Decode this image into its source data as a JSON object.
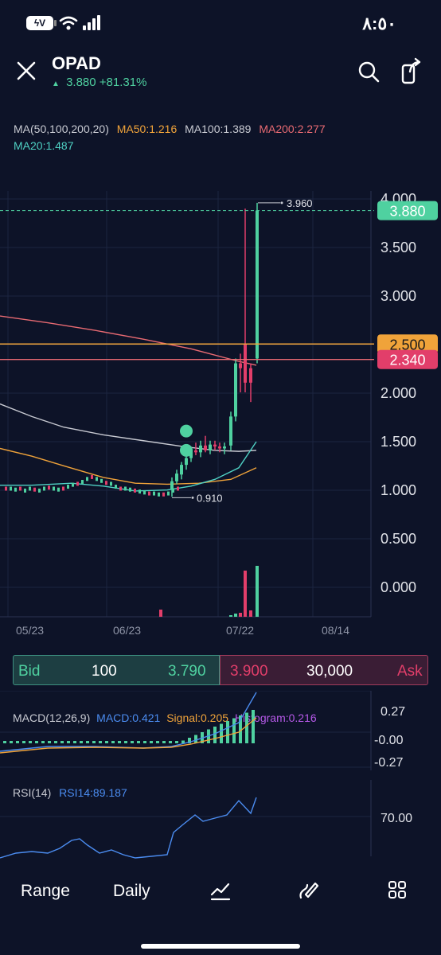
{
  "status": {
    "battery": "ϟV",
    "time": "٨:٥٠"
  },
  "header": {
    "symbol": "OPAD",
    "last": "3.880",
    "change": "+81.31%"
  },
  "ma": {
    "label": "MA(50,100,200,20)",
    "ma50": "MA50:1.216",
    "ma100": "MA100:1.389",
    "ma200": "MA200:2.277",
    "ma20": "MA20:1.487"
  },
  "colors": {
    "up": "#4fd1a0",
    "down": "#e23e6a",
    "ma50": "#f0a33a",
    "ma100": "#c8cad2",
    "ma200": "#e86a72",
    "ma20": "#4fd1c4",
    "bg": "#0d1328"
  },
  "chart_data": {
    "type": "candlestick",
    "y_ticks": [
      "4.000",
      "3.500",
      "3.000",
      "2.500",
      "2.000",
      "1.500",
      "1.000",
      "0.500",
      "0.000"
    ],
    "ylim": [
      -0.3,
      4.1
    ],
    "x_ticks": [
      "05/23",
      "06/23",
      "07/22",
      "08/14"
    ],
    "price_tags": {
      "last": "3.880",
      "orange": "2.500",
      "red": "2.340"
    },
    "annotations": {
      "high": "3.960",
      "low": "0.910"
    }
  },
  "bidask": {
    "bid_label": "Bid",
    "bid_size": "100",
    "bid_price": "3.790",
    "ask_price": "3.900",
    "ask_size": "30,000",
    "ask_label": "Ask"
  },
  "macd": {
    "label": "MACD(12,26,9)",
    "macd": "MACD:0.421",
    "signal": "Signal:0.205",
    "hist": "Histogram:0.216",
    "ticks": [
      "0.27",
      "-0.00",
      "-0.27"
    ]
  },
  "rsi": {
    "label": "RSI(14)",
    "value": "RSI14:89.187",
    "ticks": [
      "70.00"
    ]
  },
  "bottom": {
    "range": "Range",
    "period": "Daily"
  }
}
